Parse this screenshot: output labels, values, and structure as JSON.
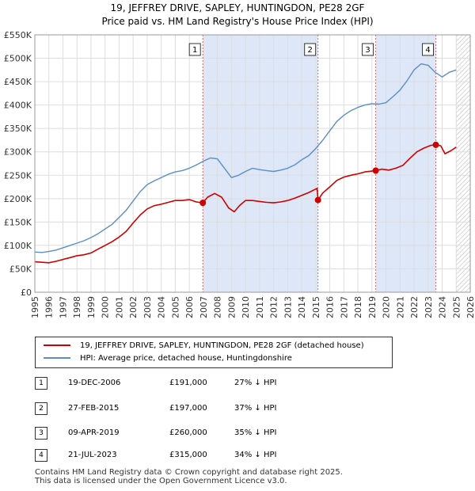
{
  "title_line1": "19, JEFFREY DRIVE, SAPLEY, HUNTINGDON, PE28 2GF",
  "title_line2": "Price paid vs. HM Land Registry's House Price Index (HPI)",
  "colors": {
    "property": "#cc0000",
    "hpi": "#5b8ec6",
    "shade": "#dde7f7",
    "grid": "#dddddd"
  },
  "legend": {
    "property_label": "19, JEFFREY DRIVE, SAPLEY, HUNTINGDON, PE28 2GF (detached house)",
    "hpi_label": "HPI: Average price, detached house, Huntingdonshire"
  },
  "transactions": [
    {
      "num": "1",
      "date": "19-DEC-2006",
      "price": "£191,000",
      "delta": "27% ↓ HPI"
    },
    {
      "num": "2",
      "date": "27-FEB-2015",
      "price": "£197,000",
      "delta": "37% ↓ HPI"
    },
    {
      "num": "3",
      "date": "09-APR-2019",
      "price": "£260,000",
      "delta": "35% ↓ HPI"
    },
    {
      "num": "4",
      "date": "21-JUL-2023",
      "price": "£315,000",
      "delta": "34% ↓ HPI"
    }
  ],
  "footer_line1": "Contains HM Land Registry data © Crown copyright and database right 2025.",
  "footer_line2": "This data is licensed under the Open Government Licence v3.0.",
  "chart_data": {
    "type": "line",
    "xlim": [
      1995,
      2026
    ],
    "ylim": [
      0,
      550000
    ],
    "x_ticks": [
      1995,
      1996,
      1997,
      1998,
      1999,
      2000,
      2001,
      2002,
      2003,
      2004,
      2005,
      2006,
      2007,
      2008,
      2009,
      2010,
      2011,
      2012,
      2013,
      2014,
      2015,
      2016,
      2017,
      2018,
      2019,
      2020,
      2021,
      2022,
      2023,
      2024,
      2025,
      2026
    ],
    "y_ticks": [
      0,
      50000,
      100000,
      150000,
      200000,
      250000,
      300000,
      350000,
      400000,
      450000,
      500000,
      550000
    ],
    "y_tick_labels": [
      "£0",
      "£50K",
      "£100K",
      "£150K",
      "£200K",
      "£250K",
      "£300K",
      "£350K",
      "£400K",
      "£450K",
      "£500K",
      "£550K"
    ],
    "future_from": 2025.0,
    "shaded_spans": [
      [
        2006.96,
        2015.16
      ],
      [
        2019.27,
        2023.55
      ]
    ],
    "sales": [
      {
        "label": "1",
        "x": 2006.96,
        "y": 191000
      },
      {
        "label": "2",
        "x": 2015.16,
        "y": 197000
      },
      {
        "label": "3",
        "x": 2019.27,
        "y": 260000
      },
      {
        "label": "4",
        "x": 2023.55,
        "y": 315000
      }
    ],
    "series": [
      {
        "name": "19, JEFFREY DRIVE, SAPLEY, HUNTINGDON, PE28 2GF (detached house)",
        "x": [
          1995,
          1995.5,
          1996,
          1996.5,
          1997,
          1997.5,
          1998,
          1998.5,
          1999,
          1999.5,
          2000,
          2000.5,
          2001,
          2001.5,
          2002,
          2002.5,
          2003,
          2003.5,
          2004,
          2004.5,
          2005,
          2005.5,
          2006,
          2006.5,
          2006.96,
          2007.3,
          2007.8,
          2008.3,
          2008.8,
          2009.2,
          2009.6,
          2010,
          2010.5,
          2011,
          2011.5,
          2012,
          2012.5,
          2013,
          2013.5,
          2014,
          2014.5,
          2015.1,
          2015.16,
          2015.5,
          2016,
          2016.5,
          2017,
          2017.5,
          2018,
          2018.5,
          2019.27,
          2019.7,
          2020.2,
          2020.7,
          2021.2,
          2021.7,
          2022.2,
          2022.7,
          2023.2,
          2023.55,
          2023.9,
          2024.2,
          2024.6,
          2025
        ],
        "values": [
          65000,
          64000,
          63000,
          66000,
          70000,
          74000,
          78000,
          80000,
          84000,
          92000,
          100000,
          108000,
          118000,
          130000,
          148000,
          165000,
          178000,
          185000,
          188000,
          192000,
          196000,
          196000,
          198000,
          193000,
          191000,
          203000,
          211000,
          203000,
          180000,
          172000,
          186000,
          196000,
          196000,
          194000,
          192000,
          191000,
          193000,
          196000,
          201000,
          207000,
          213000,
          222000,
          197000,
          212000,
          225000,
          239000,
          246000,
          250000,
          253000,
          257000,
          260000,
          263000,
          261000,
          265000,
          271000,
          286000,
          300000,
          308000,
          314000,
          315000,
          313000,
          296000,
          302000,
          310000
        ]
      },
      {
        "name": "HPI: Average price, detached house, Huntingdonshire",
        "x": [
          1995,
          1995.5,
          1996,
          1996.5,
          1997,
          1997.5,
          1998,
          1998.5,
          1999,
          1999.5,
          2000,
          2000.5,
          2001,
          2001.5,
          2002,
          2002.5,
          2003,
          2003.5,
          2004,
          2004.5,
          2005,
          2005.5,
          2006,
          2006.5,
          2007,
          2007.5,
          2008,
          2008.5,
          2009,
          2009.5,
          2010,
          2010.5,
          2011,
          2011.5,
          2012,
          2012.5,
          2013,
          2013.5,
          2014,
          2014.5,
          2015,
          2015.5,
          2016,
          2016.5,
          2017,
          2017.5,
          2018,
          2018.5,
          2019,
          2019.5,
          2020,
          2020.5,
          2021,
          2021.5,
          2022,
          2022.5,
          2023,
          2023.5,
          2024,
          2024.5,
          2025
        ],
        "values": [
          86000,
          85000,
          87000,
          90000,
          95000,
          100000,
          105000,
          110000,
          117000,
          125000,
          135000,
          145000,
          160000,
          175000,
          195000,
          215000,
          230000,
          238000,
          245000,
          252000,
          257000,
          260000,
          265000,
          272000,
          280000,
          287000,
          285000,
          265000,
          245000,
          250000,
          258000,
          265000,
          262000,
          260000,
          258000,
          261000,
          265000,
          272000,
          283000,
          292000,
          307000,
          325000,
          345000,
          365000,
          378000,
          388000,
          395000,
          400000,
          403000,
          402000,
          405000,
          418000,
          432000,
          452000,
          475000,
          488000,
          485000,
          470000,
          460000,
          470000,
          475000
        ]
      }
    ]
  }
}
